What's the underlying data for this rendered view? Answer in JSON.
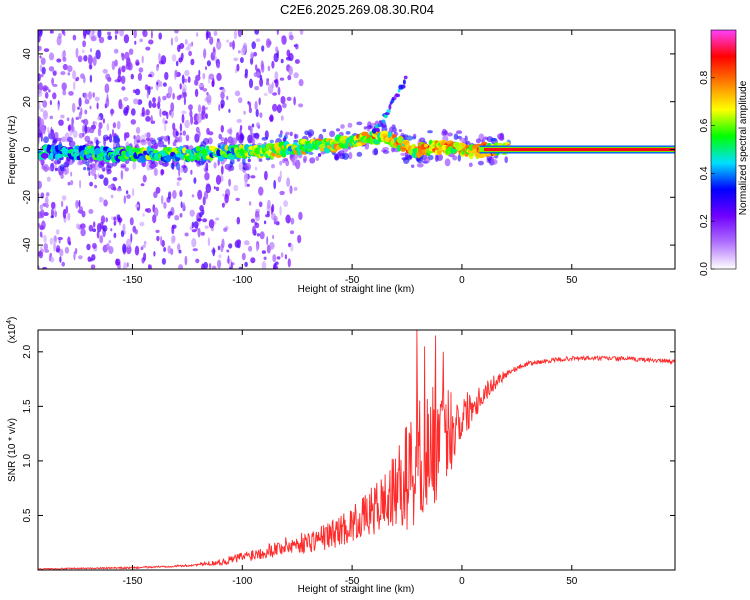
{
  "title": "C2E6.2025.269.08.30.R04",
  "chart_data": [
    {
      "type": "heatmap",
      "name": "spectrogram",
      "xlabel": "Height of straight line (km)",
      "ylabel": "Frequency (Hz)",
      "xlim": [
        -193,
        97
      ],
      "ylim": [
        -50,
        50
      ],
      "xticks": [
        -150,
        -100,
        -50,
        0,
        50
      ],
      "xtick_labels": [
        "-150",
        "-100",
        "-50",
        "0",
        "50"
      ],
      "yticks": [
        -40,
        -20,
        0,
        20,
        40
      ],
      "ytick_labels": [
        "-40",
        "-20",
        "0",
        "20",
        "40"
      ],
      "colorbar": {
        "label": "Normalized spectral amplitude",
        "range": [
          0,
          1
        ],
        "ticks": [
          0.0,
          0.2,
          0.4,
          0.6,
          0.8
        ],
        "tick_labels": [
          "0.0",
          "0.2",
          "0.4",
          "0.6",
          "0.8"
        ],
        "colors": [
          "#ffffff",
          "#b070ff",
          "#7000ff",
          "#0000ff",
          "#00e0ff",
          "#00ff00",
          "#ffff00",
          "#ff8000",
          "#ff0000",
          "#ff40ff"
        ]
      },
      "ridge": {
        "x": [
          -193,
          -150,
          -125,
          -100,
          -90,
          -75,
          -60,
          -48,
          -40,
          -33,
          -28,
          -22,
          -15,
          -5,
          0,
          5,
          10,
          20,
          97
        ],
        "freq": [
          -1,
          -2,
          -2,
          -1,
          -1,
          1,
          2,
          4,
          5,
          5,
          2,
          -1,
          1,
          1,
          0,
          -1,
          0,
          0,
          0
        ]
      },
      "branch": {
        "x": [
          -40,
          -36,
          -33,
          -30,
          -27,
          -25
        ],
        "freq": [
          7,
          12,
          17,
          22,
          27,
          31
        ]
      }
    },
    {
      "type": "line",
      "name": "snr",
      "xlabel": "Height of straight line (km)",
      "ylabel": "SNR (10 * v/v)",
      "y_multiplier": "(x10",
      "y_multiplier_exp": "4",
      "y_multiplier_close": ")",
      "xlim": [
        -193,
        97
      ],
      "ylim": [
        0,
        2.2
      ],
      "xticks": [
        -150,
        -100,
        -50,
        0,
        50
      ],
      "xtick_labels": [
        "-150",
        "-100",
        "-50",
        "0",
        "50"
      ],
      "yticks": [
        0.5,
        1.0,
        1.5,
        2.0
      ],
      "ytick_labels": [
        "0.5",
        "1.0",
        "1.5",
        "2.0"
      ],
      "color": "#ff2a2a",
      "envelope": {
        "x": [
          -193,
          -150,
          -125,
          -110,
          -100,
          -90,
          -80,
          -70,
          -60,
          -50,
          -40,
          -30,
          -22,
          -15,
          -10,
          -5,
          0,
          5,
          10,
          15,
          20,
          25,
          30,
          40,
          50,
          60,
          70,
          80,
          90,
          97
        ],
        "y": [
          0.01,
          0.02,
          0.04,
          0.07,
          0.12,
          0.17,
          0.22,
          0.26,
          0.32,
          0.42,
          0.55,
          0.72,
          0.95,
          1.1,
          1.2,
          1.3,
          1.4,
          1.52,
          1.62,
          1.72,
          1.8,
          1.85,
          1.89,
          1.92,
          1.94,
          1.94,
          1.94,
          1.93,
          1.92,
          1.91
        ]
      },
      "amplitude": {
        "x": [
          -193,
          -120,
          -100,
          -70,
          -45,
          -30,
          -22,
          -12,
          -5,
          0,
          10,
          20,
          25,
          97
        ],
        "y": [
          0.004,
          0.01,
          0.05,
          0.1,
          0.18,
          0.35,
          0.6,
          0.55,
          0.4,
          0.22,
          0.1,
          0.04,
          0.02,
          0.02
        ]
      },
      "peaks": [
        {
          "x": -20.5,
          "y": 2.2
        },
        {
          "x": -17,
          "y": 2.05
        },
        {
          "x": -12,
          "y": 2.15
        },
        {
          "x": -8.5,
          "y": 2.0
        }
      ]
    }
  ]
}
